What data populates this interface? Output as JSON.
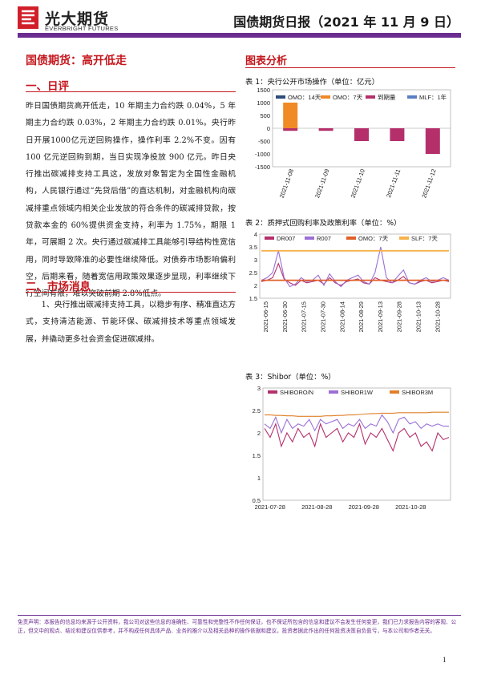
{
  "header": {
    "brand_cn": "光大期货",
    "brand_en": "EVERBRIGHT FUTURES",
    "report_title": "国债期货日报（2021 年 11 月 9 日）"
  },
  "colors": {
    "brand_purple": "#6a2c8f",
    "heading_red": "#c4161c",
    "logo_red": "#d11f2a"
  },
  "left": {
    "section_title": "国债期货：高开低走",
    "h_daily": "一、日评",
    "daily_text": "昨日国债期货高开低走，10 年期主力合约跌 0.04%，5 年期主力合约跌 0.03%，2 年期主力合约跌 0.01%。央行昨日开展1000亿元逆回购操作，操作利率 2.2%不变。因有 100 亿元逆回购到期，当日实现净投放 900 亿元。昨日央行推出碳减排支持工具这，发放对象暂定为全国性金融机构，人民银行通过“先贷后借”的直达机制，对金融机构向碳减排重点领域内相关企业发放的符合条件的碳减排贷款，按贷款本金的 60%提供资金支持，利率为 1.75%，期限 1 年，可展期 2 次。央行通过碳减排工具能够引导结构性宽信用，同时导致降准的必要性继续降低。对债券市场影响偏利空，后期来看，随着宽信用政策效果逐步显现，利率继续下行空间有限，难以突破前期 2.8%低点。",
    "h_news": "二、市场消息",
    "news_text": "1、央行推出碳减排支持工具，以稳步有序、精准直达方式，支持清洁能源、节能环保、碳减排技术等重点领域发展，并撬动更多社会资金促进碳减排。"
  },
  "right": {
    "section_title": "图表分析",
    "chart1_title": "表 1：央行公开市场操作（单位：亿元）",
    "chart2_title": "表 2：质押式回购利率及政策利率（单位：%）",
    "chart3_title": "表 3：Shibor（单位：%）"
  },
  "chart_data": [
    {
      "type": "bar",
      "title": "表 1：央行公开市场操作（单位：亿元）",
      "categories": [
        "2021-11-08",
        "2021-11-09",
        "2021-11-10",
        "2021-11-11",
        "2021-11-12"
      ],
      "y_ticks": [
        "1500",
        "1000",
        "500",
        "0",
        "-500",
        "-1000",
        "-1500"
      ],
      "ylim": [
        -1500,
        1500
      ],
      "legend": [
        "OMO：14天",
        "OMO：7天",
        "到期量",
        "MLF：1年"
      ],
      "legend_colors": [
        "#2f4b7c",
        "#f08a24",
        "#b5306b",
        "#5b7fc4"
      ],
      "series": [
        {
          "name": "OMO：14天",
          "values": [
            0,
            0,
            0,
            0,
            0
          ]
        },
        {
          "name": "OMO：7天",
          "values": [
            1000,
            0,
            0,
            0,
            0
          ]
        },
        {
          "name": "到期量",
          "values": [
            -100,
            -100,
            -500,
            -500,
            -1000
          ]
        },
        {
          "name": "MLF：1年",
          "values": [
            0,
            0,
            0,
            0,
            0
          ]
        }
      ]
    },
    {
      "type": "line",
      "title": "表 2：质押式回购利率及政策利率（单位：%）",
      "x_ticks": [
        "2021-06-15",
        "2021-06-30",
        "2021-07-15",
        "2021-07-30",
        "2021-08-14",
        "2021-08-29",
        "2021-09-13",
        "2021-09-28",
        "2021-10-13",
        "2021-10-28"
      ],
      "y_ticks": [
        "4",
        "3.5",
        "3",
        "2.5",
        "2",
        "1.5"
      ],
      "ylim": [
        1.5,
        4
      ],
      "legend": [
        "DR007",
        "R007",
        "OMO：7天",
        "SLF：7天"
      ],
      "legend_colors": [
        "#b5306b",
        "#9b6fd6",
        "#e0602a",
        "#f5b24a"
      ],
      "series": [
        {
          "name": "DR007",
          "values": [
            2.15,
            2.2,
            2.3,
            2.85,
            2.25,
            2.1,
            2.0,
            2.2,
            2.1,
            2.15,
            2.2,
            2.05,
            2.3,
            2.1,
            2.0,
            2.15,
            2.2,
            2.25,
            2.1,
            2.05,
            2.3,
            2.2,
            2.15,
            2.1,
            2.2,
            2.35,
            2.1,
            2.05,
            2.15,
            2.2,
            2.1,
            2.15,
            2.2,
            2.15
          ]
        },
        {
          "name": "R007",
          "values": [
            2.2,
            2.3,
            2.5,
            3.35,
            2.3,
            1.95,
            2.05,
            2.3,
            2.15,
            2.2,
            2.4,
            2.0,
            2.45,
            2.15,
            1.95,
            2.2,
            2.3,
            2.4,
            2.15,
            2.05,
            2.5,
            3.5,
            2.3,
            2.1,
            2.35,
            2.6,
            2.1,
            2.05,
            2.2,
            2.3,
            2.15,
            2.2,
            2.3,
            2.2
          ]
        },
        {
          "name": "OMO：7天",
          "values": [
            2.2,
            2.2,
            2.2,
            2.2,
            2.2,
            2.2,
            2.2,
            2.2,
            2.2,
            2.2,
            2.2,
            2.2,
            2.2,
            2.2,
            2.2,
            2.2,
            2.2,
            2.2,
            2.2,
            2.2,
            2.2,
            2.2,
            2.2,
            2.2,
            2.2,
            2.2,
            2.2,
            2.2,
            2.2,
            2.2,
            2.2,
            2.2,
            2.2,
            2.2
          ]
        },
        {
          "name": "SLF：7天",
          "values": [
            3.35,
            3.35,
            3.35,
            3.35,
            3.35,
            3.35,
            3.35,
            3.35,
            3.35,
            3.35,
            3.35,
            3.35,
            3.35,
            3.35,
            3.35,
            3.35,
            3.35,
            3.35,
            3.35,
            3.35,
            3.35,
            3.35,
            3.35,
            3.35,
            3.35,
            3.35,
            3.35,
            3.35,
            3.35,
            3.35,
            3.35,
            3.35,
            3.35,
            3.35
          ]
        }
      ]
    },
    {
      "type": "line",
      "title": "表 3：Shibor（单位：%）",
      "x_ticks": [
        "2021-07-28",
        "2021-08-28",
        "2021-09-28",
        "2021-10-28"
      ],
      "y_ticks": [
        "3",
        "2.5",
        "2",
        "1.5",
        "1",
        "0.5"
      ],
      "ylim": [
        0.5,
        3
      ],
      "legend": [
        "SHIBORO/N",
        "SHIBOR1W",
        "SHIBOR3M"
      ],
      "legend_colors": [
        "#b5306b",
        "#9b6fd6",
        "#e0802a"
      ],
      "series": [
        {
          "name": "SHIBORO/N",
          "values": [
            2.1,
            1.9,
            2.2,
            1.7,
            2.0,
            1.8,
            2.1,
            1.9,
            2.0,
            1.7,
            2.2,
            1.9,
            2.0,
            2.1,
            1.8,
            2.0,
            1.9,
            2.2,
            1.75,
            2.0,
            1.9,
            2.1,
            1.85,
            1.6,
            2.0,
            2.1,
            1.9,
            2.0,
            1.7,
            1.8,
            1.6,
            2.0,
            1.85,
            1.9
          ]
        },
        {
          "name": "SHIBOR1W",
          "values": [
            2.2,
            2.1,
            2.35,
            2.0,
            2.3,
            2.1,
            2.2,
            2.15,
            2.3,
            2.05,
            2.3,
            2.2,
            2.25,
            2.3,
            2.1,
            2.2,
            2.15,
            2.3,
            2.1,
            2.2,
            2.15,
            2.4,
            2.25,
            2.0,
            2.3,
            2.35,
            2.2,
            2.25,
            2.1,
            2.2,
            2.15,
            2.2,
            2.15,
            2.15
          ]
        },
        {
          "name": "SHIBOR3M",
          "values": [
            2.4,
            2.4,
            2.39,
            2.39,
            2.38,
            2.38,
            2.37,
            2.37,
            2.37,
            2.37,
            2.37,
            2.38,
            2.38,
            2.39,
            2.39,
            2.4,
            2.4,
            2.41,
            2.42,
            2.43,
            2.43,
            2.44,
            2.44,
            2.44,
            2.45,
            2.45,
            2.45,
            2.45,
            2.45,
            2.45,
            2.46,
            2.46,
            2.46,
            2.46
          ]
        }
      ]
    }
  ],
  "footer": {
    "disclaimer": "免责声明：本报告的信息均来源于公开资料，我公司对这些信息的准确性、可靠性和完整性不作任何保证，也不保证所包含的信息和建议不会发生任何变更，我们已力求报告内容的客观、公正，但文中的观点、结论和建议仅供参考，并不构成任何具体产品、业务的推介以及相关品种的操作依据和建议，投资者据此作出的任何投资决策自负盈亏，与本公司和作者无关。",
    "page_number": "1"
  }
}
